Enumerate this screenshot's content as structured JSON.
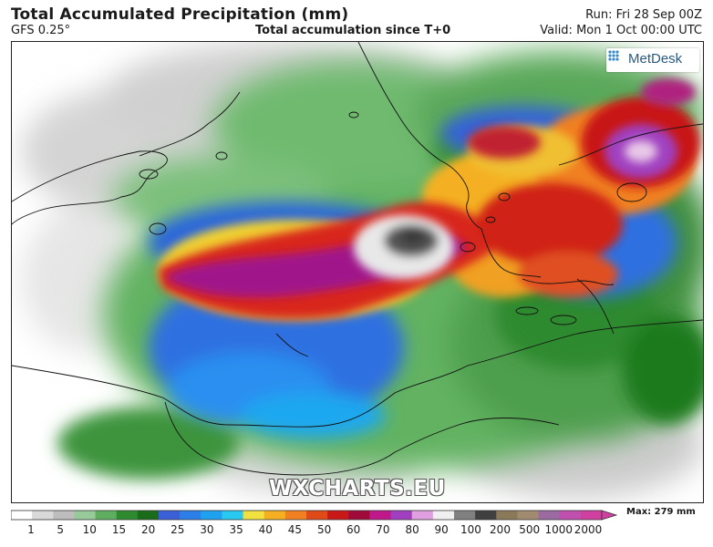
{
  "header": {
    "title": "Total Accumulated Precipitation (mm)",
    "model": "GFS 0.25°",
    "subtitle": "Total accumulation since T+0",
    "run": "Run: Fri 28 Sep 00Z",
    "valid": "Valid: Mon 1 Oct 00:00 UTC"
  },
  "map": {
    "logo_text": "MetDesk",
    "logo_icon": "metdesk-logo-icon",
    "watermark": "WXCHARTS.EU"
  },
  "legend": {
    "max_label": "Max: 279 mm",
    "ticks": [
      "1",
      "5",
      "10",
      "15",
      "20",
      "25",
      "30",
      "35",
      "40",
      "45",
      "50",
      "60",
      "70",
      "80",
      "90",
      "100",
      "200",
      "500",
      "1000",
      "2000"
    ],
    "colors": [
      "#ffffff",
      "#d9d9d9",
      "#bdbdbd",
      "#98c99a",
      "#5fae5f",
      "#2e8a2e",
      "#1a6b1a",
      "#3a5fd6",
      "#2c7fe8",
      "#1ea2f0",
      "#28c8f0",
      "#f0e040",
      "#f4b020",
      "#f08020",
      "#e04a18",
      "#c81818",
      "#a00a3a",
      "#c0188a",
      "#a040c0",
      "#e0a0e0",
      "#f0f0f0",
      "#808080",
      "#404040",
      "#8a7a5a",
      "#a08a70",
      "#9a6aa0",
      "#c050b0",
      "#d040a0"
    ]
  }
}
